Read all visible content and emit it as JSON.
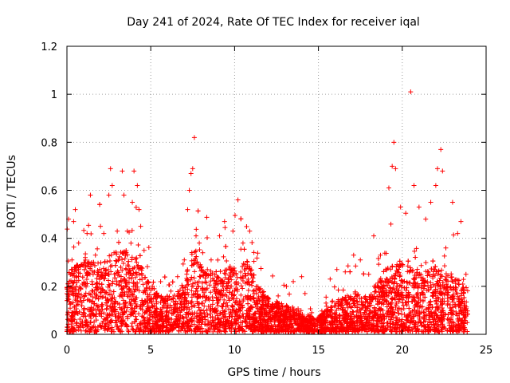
{
  "chart_data": {
    "type": "scatter",
    "title": "Day 241 of 2024, Rate Of TEC Index for receiver iqal",
    "xlabel": "GPS time / hours",
    "ylabel": "ROTI / TECUs",
    "xlim": [
      0,
      25
    ],
    "ylim": [
      0,
      1.2
    ],
    "x_ticks": [
      0,
      5,
      10,
      15,
      20,
      25
    ],
    "x_tick_labels": [
      "0",
      "5",
      "10",
      "15",
      "20",
      "25"
    ],
    "y_ticks": [
      0,
      0.2,
      0.4,
      0.6,
      0.8,
      1.0,
      1.2
    ],
    "y_tick_labels": [
      "0",
      "0.2",
      "0.4",
      "0.6",
      "0.8",
      "1",
      "1.2"
    ],
    "grid": true,
    "marker": "+",
    "color": "#ff0000",
    "series": [
      {
        "name": "ROTI",
        "points": [
          [
            0.1,
            0.48
          ],
          [
            0.3,
            0.31
          ],
          [
            0.4,
            0.47
          ],
          [
            0.5,
            0.52
          ],
          [
            0.7,
            0.38
          ],
          [
            1.2,
            0.42
          ],
          [
            1.4,
            0.58
          ],
          [
            1.7,
            0.33
          ],
          [
            2.0,
            0.45
          ],
          [
            2.2,
            0.42
          ],
          [
            2.5,
            0.58
          ],
          [
            2.6,
            0.69
          ],
          [
            2.7,
            0.62
          ],
          [
            3.0,
            0.43
          ],
          [
            3.3,
            0.68
          ],
          [
            3.4,
            0.58
          ],
          [
            3.6,
            0.43
          ],
          [
            3.9,
            0.55
          ],
          [
            4.0,
            0.68
          ],
          [
            4.2,
            0.62
          ],
          [
            4.3,
            0.52
          ],
          [
            4.4,
            0.45
          ],
          [
            4.6,
            0.35
          ],
          [
            4.8,
            0.22
          ],
          [
            5.3,
            0.17
          ],
          [
            5.8,
            0.14
          ],
          [
            6.2,
            0.18
          ],
          [
            6.6,
            0.24
          ],
          [
            7.0,
            0.31
          ],
          [
            7.2,
            0.52
          ],
          [
            7.3,
            0.6
          ],
          [
            7.4,
            0.67
          ],
          [
            7.5,
            0.69
          ],
          [
            7.6,
            0.82
          ],
          [
            7.7,
            0.41
          ],
          [
            8.1,
            0.34
          ],
          [
            8.6,
            0.31
          ],
          [
            9.1,
            0.41
          ],
          [
            9.4,
            0.47
          ],
          [
            9.9,
            0.43
          ],
          [
            10.2,
            0.56
          ],
          [
            10.5,
            0.38
          ],
          [
            10.9,
            0.43
          ],
          [
            11.4,
            0.19
          ],
          [
            12.0,
            0.15
          ],
          [
            12.6,
            0.16
          ],
          [
            13.1,
            0.12
          ],
          [
            13.5,
            0.22
          ],
          [
            14.0,
            0.24
          ],
          [
            14.2,
            0.17
          ],
          [
            14.6,
            0.09
          ],
          [
            15.2,
            0.06
          ],
          [
            15.7,
            0.23
          ],
          [
            16.1,
            0.27
          ],
          [
            16.6,
            0.26
          ],
          [
            17.1,
            0.33
          ],
          [
            17.5,
            0.31
          ],
          [
            18.0,
            0.25
          ],
          [
            18.3,
            0.41
          ],
          [
            18.7,
            0.33
          ],
          [
            19.2,
            0.61
          ],
          [
            19.4,
            0.7
          ],
          [
            19.5,
            0.8
          ],
          [
            19.6,
            0.69
          ],
          [
            19.9,
            0.53
          ],
          [
            20.5,
            1.01
          ],
          [
            20.7,
            0.62
          ],
          [
            21.0,
            0.53
          ],
          [
            21.4,
            0.48
          ],
          [
            21.7,
            0.55
          ],
          [
            22.0,
            0.62
          ],
          [
            22.1,
            0.69
          ],
          [
            22.3,
            0.77
          ],
          [
            22.4,
            0.68
          ],
          [
            22.6,
            0.36
          ],
          [
            23.0,
            0.55
          ],
          [
            23.3,
            0.42
          ],
          [
            23.5,
            0.47
          ],
          [
            23.8,
            0.25
          ]
        ],
        "baseline_profile": [
          [
            0.0,
            0.2
          ],
          [
            1.0,
            0.24
          ],
          [
            2.0,
            0.24
          ],
          [
            3.0,
            0.27
          ],
          [
            4.0,
            0.27
          ],
          [
            4.8,
            0.18
          ],
          [
            5.5,
            0.12
          ],
          [
            6.5,
            0.12
          ],
          [
            7.0,
            0.16
          ],
          [
            7.5,
            0.3
          ],
          [
            8.0,
            0.22
          ],
          [
            9.0,
            0.2
          ],
          [
            10.0,
            0.22
          ],
          [
            10.8,
            0.24
          ],
          [
            11.5,
            0.14
          ],
          [
            12.5,
            0.1
          ],
          [
            13.5,
            0.08
          ],
          [
            14.0,
            0.06
          ],
          [
            15.0,
            0.05
          ],
          [
            16.0,
            0.1
          ],
          [
            17.0,
            0.13
          ],
          [
            18.0,
            0.12
          ],
          [
            19.0,
            0.22
          ],
          [
            20.0,
            0.23
          ],
          [
            21.0,
            0.2
          ],
          [
            22.0,
            0.22
          ],
          [
            23.0,
            0.18
          ],
          [
            23.9,
            0.16
          ]
        ]
      }
    ]
  }
}
